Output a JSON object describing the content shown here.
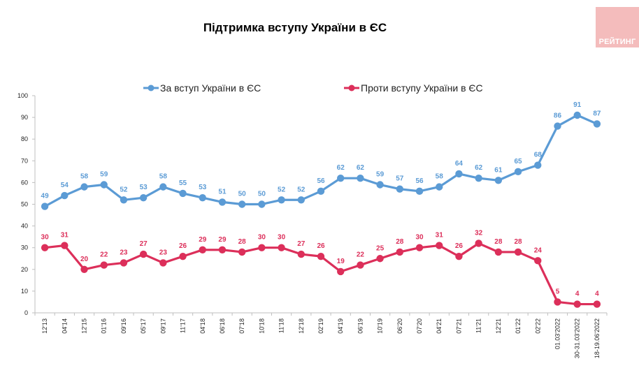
{
  "title": "Підтримка вступу України в ЄС",
  "logo": {
    "text": "РЕЙТИНГ",
    "color": "#f4bcbc"
  },
  "legend": [
    {
      "label": "За вступ України в ЄС",
      "color": "#5b9bd5"
    },
    {
      "label": "Проти вступу України в ЄС",
      "color": "#dc2f5a"
    }
  ],
  "chart_data": {
    "type": "line",
    "title": "Підтримка вступу України в ЄС",
    "xlabel": "",
    "ylabel": "",
    "ylim": [
      0,
      100
    ],
    "yticks": [
      0,
      10,
      20,
      30,
      40,
      50,
      60,
      70,
      80,
      90,
      100
    ],
    "grid": false,
    "legend_position": "top",
    "categories": [
      "12'13",
      "04'14",
      "12'15",
      "01'16",
      "09'16",
      "05'17",
      "09'17",
      "11'17",
      "04'18",
      "06'18",
      "07'18",
      "10'18",
      "11'18",
      "12'18",
      "02'19",
      "04'19",
      "06'19",
      "10'19",
      "06'20",
      "07'20",
      "04'21",
      "07'21",
      "11'21",
      "12'21",
      "01'22",
      "02'22",
      "01.03'2022",
      "30-31.03'2022",
      "18-19.06'2022"
    ],
    "series": [
      {
        "name": "За вступ України в ЄС",
        "color": "#5b9bd5",
        "values": [
          49,
          54,
          58,
          59,
          52,
          53,
          58,
          55,
          53,
          51,
          50,
          50,
          52,
          52,
          56,
          62,
          62,
          59,
          57,
          56,
          58,
          64,
          62,
          61,
          65,
          68,
          86,
          91,
          87
        ]
      },
      {
        "name": "Проти вступу України в ЄС",
        "color": "#dc2f5a",
        "values": [
          30,
          31,
          20,
          22,
          23,
          27,
          23,
          26,
          29,
          29,
          28,
          30,
          30,
          27,
          26,
          19,
          22,
          25,
          28,
          30,
          31,
          26,
          32,
          28,
          28,
          24,
          5,
          4,
          4
        ]
      }
    ]
  }
}
